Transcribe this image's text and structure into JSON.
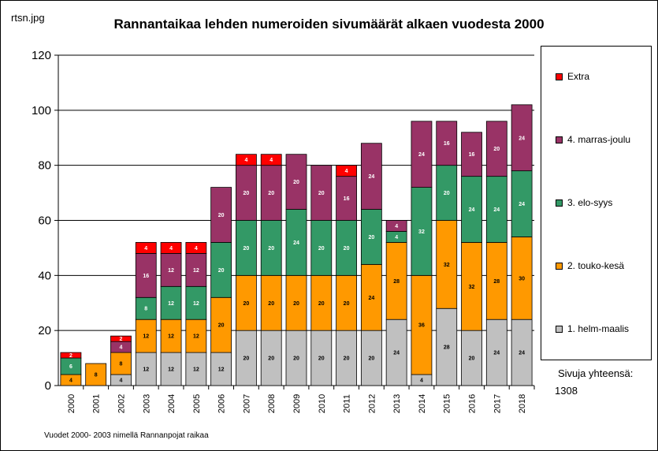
{
  "filename": "rtsn.jpg",
  "chart_data": {
    "type": "bar",
    "stacked": true,
    "title": "Rannantaikaa lehden numeroiden sivumäärät  alkaen vuodesta 2000",
    "xlabel": "",
    "ylabel": "",
    "ylim": [
      0,
      120
    ],
    "yticks": [
      "0",
      "20",
      "40",
      "60",
      "80",
      "100",
      "120"
    ],
    "grid": true,
    "legend_position": "right",
    "categories": [
      "2000",
      "2001",
      "2002",
      "2003",
      "2004",
      "2005",
      "2006",
      "2007",
      "2008",
      "2009",
      "2010",
      "2011",
      "2012",
      "2013",
      "2014",
      "2015",
      "2016",
      "2017",
      "2018"
    ],
    "series": [
      {
        "name": "1. helm-maalis",
        "color": "#c0c0c0",
        "label_color": "#000000",
        "values": [
          0,
          0,
          4,
          12,
          12,
          12,
          12,
          20,
          20,
          20,
          20,
          20,
          20,
          24,
          4,
          28,
          20,
          24,
          24
        ]
      },
      {
        "name": "2. touko-kesä",
        "color": "#ff9900",
        "label_color": "#000000",
        "values": [
          4,
          8,
          8,
          12,
          12,
          12,
          20,
          20,
          20,
          20,
          20,
          20,
          24,
          28,
          36,
          32,
          32,
          28,
          30
        ]
      },
      {
        "name": "3. elo-syys",
        "color": "#339966",
        "label_color": "#ffffff",
        "values": [
          6,
          0,
          0,
          8,
          12,
          12,
          20,
          20,
          20,
          24,
          20,
          20,
          20,
          4,
          32,
          20,
          24,
          24,
          24
        ]
      },
      {
        "name": "4. marras-joulu",
        "color": "#993366",
        "label_color": "#ffffff",
        "values": [
          0,
          0,
          4,
          16,
          12,
          12,
          20,
          20,
          20,
          20,
          20,
          16,
          24,
          4,
          24,
          16,
          16,
          20,
          24
        ]
      },
      {
        "name": "Extra",
        "color": "#ff0000",
        "label_color": "#ffffff",
        "values": [
          2,
          0,
          2,
          4,
          4,
          4,
          0,
          4,
          4,
          0,
          0,
          4,
          0,
          0,
          0,
          0,
          0,
          0,
          0
        ]
      }
    ]
  },
  "legend_items": [
    "Extra",
    "4. marras-joulu",
    "3. elo-syys",
    "2. touko-kesä",
    "1. helm-maalis"
  ],
  "total_label": "Sivuja yhteensä:",
  "total_value": "1308",
  "footnote": "Vuodet 2000- 2003 nimellä Rannanpojat raikaa"
}
